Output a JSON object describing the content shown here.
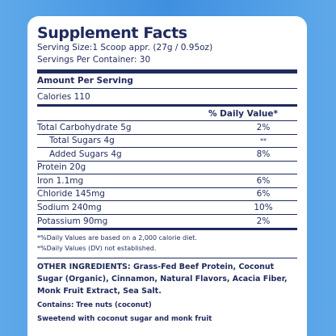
{
  "header": {
    "title": "Supplement Facts",
    "serving_size": "Serving Size:1 Scoop appr. (27g / 0.95oz)",
    "servings_per_container": "Servings Per Container: 30"
  },
  "amount_per_serving": "Amount Per Serving",
  "calories": "Calories 110",
  "daily_value_header": "% Daily Value*",
  "nutrients": [
    {
      "name": "Total Carbohydrate 5g",
      "dv": "2%",
      "indent": false
    },
    {
      "name": "Total Sugars 4g",
      "dv": "**",
      "indent": true
    },
    {
      "name": "Added Sugars 4g",
      "dv": "8%",
      "indent": true
    },
    {
      "name": "Protein 20g",
      "dv": "",
      "indent": false
    },
    {
      "name": "Iron 1.1mg",
      "dv": "6%",
      "indent": false
    },
    {
      "name": "Chloride 145mg",
      "dv": "6%",
      "indent": false
    },
    {
      "name": "Sodium 240mg",
      "dv": "10%",
      "indent": false
    },
    {
      "name": "Potassium 90mg",
      "dv": "2%",
      "indent": false
    }
  ],
  "footnotes": [
    "*%Daily Values are based on a 2,000 calorie diet.",
    "*%Daily Values (DV) not established."
  ],
  "ingredients": "OTHER INGREDIENTS: Grass-Fed Beef Protein, Coconut Sugar (Organic), Cinnamon, Natural Flavors, Acacia Fiber, Monk Fruit Extract, Sea Salt.",
  "contains": "Contains: Tree nuts (coconut)",
  "sweetened": "Sweetend with coconut sugar and monk fruit",
  "colors": {
    "background": "#3f8fe0",
    "ink": "#1f2a5c",
    "card": "#ffffff"
  }
}
